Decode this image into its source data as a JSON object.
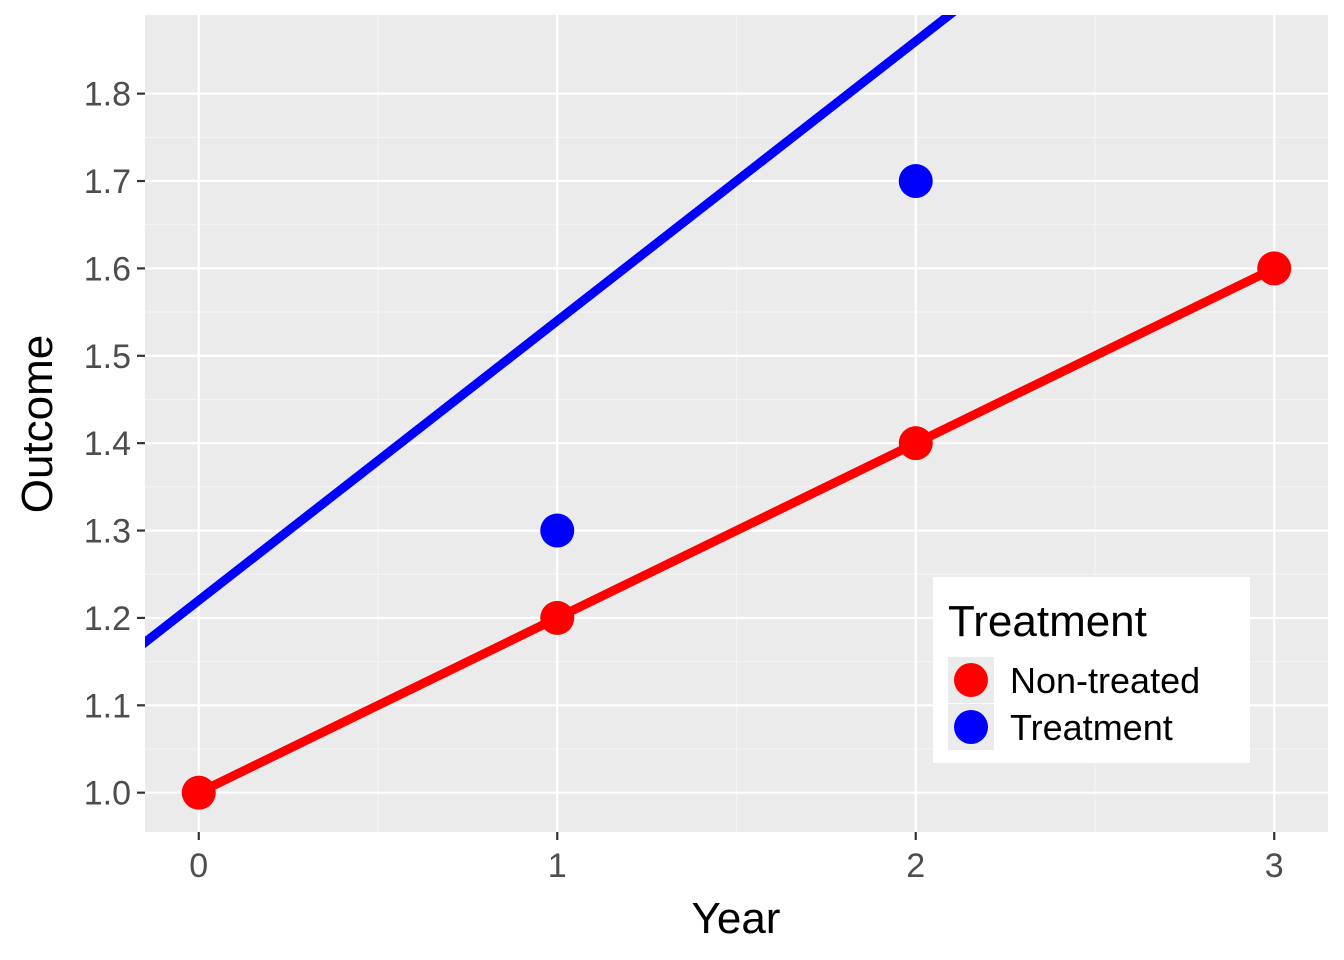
{
  "chart_data": {
    "type": "line",
    "x": [
      0,
      1,
      2,
      3
    ],
    "xlabel": "Year",
    "ylabel": "Outcome",
    "xlim": [
      -0.15,
      3.15
    ],
    "ylim": [
      0.955,
      1.89
    ],
    "x_ticks": [
      0,
      1,
      2,
      3
    ],
    "x_tick_labels": [
      "0",
      "1",
      "2",
      "3"
    ],
    "y_ticks": [
      1.0,
      1.1,
      1.2,
      1.3,
      1.4,
      1.5,
      1.6,
      1.7,
      1.8
    ],
    "y_tick_labels": [
      "1.0",
      "1.1",
      "1.2",
      "1.3",
      "1.4",
      "1.5",
      "1.6",
      "1.7",
      "1.8"
    ],
    "grid": true,
    "legend": {
      "title": "Treatment",
      "position": "bottom-right inside"
    },
    "series": [
      {
        "name": "Non-treated",
        "color": "#ff0000",
        "points": [
          [
            0,
            1.0
          ],
          [
            1,
            1.2
          ],
          [
            2,
            1.4
          ],
          [
            3,
            1.6
          ]
        ],
        "line": [
          [
            0,
            1.0
          ],
          [
            3,
            1.6
          ]
        ]
      },
      {
        "name": "Treatment",
        "color": "#0000ff",
        "points": [
          [
            1,
            1.3
          ],
          [
            2,
            1.7
          ]
        ],
        "line": [
          [
            -1,
            0.9
          ],
          [
            4,
            2.5
          ]
        ]
      }
    ]
  }
}
